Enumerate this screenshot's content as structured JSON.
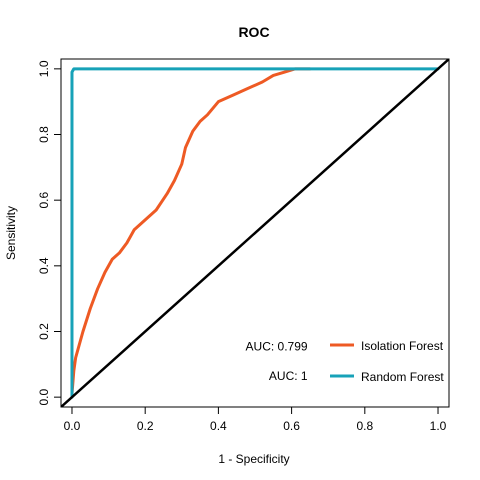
{
  "chart_data": {
    "type": "line",
    "title": "ROC",
    "xlabel": "1 - Specificity",
    "ylabel": "Sensitivity",
    "xlim": [
      -0.03,
      1.03
    ],
    "ylim": [
      -0.03,
      1.03
    ],
    "x_ticks": [
      "0.0",
      "0.2",
      "0.4",
      "0.6",
      "0.8",
      "1.0"
    ],
    "y_ticks": [
      "0.0",
      "0.2",
      "0.4",
      "0.6",
      "0.8",
      "1.0"
    ],
    "grid": false,
    "series": [
      {
        "name": "Isolation Forest",
        "color": "#ee5a24",
        "x": [
          0.0,
          0.005,
          0.01,
          0.02,
          0.03,
          0.05,
          0.07,
          0.09,
          0.11,
          0.13,
          0.15,
          0.17,
          0.2,
          0.23,
          0.26,
          0.28,
          0.3,
          0.31,
          0.33,
          0.35,
          0.37,
          0.4,
          0.44,
          0.48,
          0.52,
          0.55,
          0.58,
          0.61,
          0.63,
          0.65
        ],
        "y": [
          0.01,
          0.08,
          0.12,
          0.16,
          0.2,
          0.27,
          0.33,
          0.38,
          0.42,
          0.44,
          0.47,
          0.51,
          0.54,
          0.57,
          0.62,
          0.66,
          0.71,
          0.76,
          0.81,
          0.84,
          0.86,
          0.9,
          0.92,
          0.94,
          0.96,
          0.98,
          0.99,
          1.0,
          1.0,
          1.0
        ]
      },
      {
        "name": "Random Forest",
        "color": "#17a2b8",
        "x": [
          0.0,
          0.0,
          0.005,
          0.1,
          1.0
        ],
        "y": [
          0.0,
          0.99,
          1.0,
          1.0,
          1.0
        ]
      },
      {
        "name": "",
        "color": "#000000",
        "x": [
          -0.03,
          1.03
        ],
        "y": [
          -0.03,
          1.03
        ]
      }
    ],
    "annotations": [
      {
        "text": "AUC: 0.799",
        "x": 0.6,
        "y": 0.155
      },
      {
        "text": "AUC: 1",
        "x": 0.6,
        "y": 0.065
      }
    ],
    "legend": {
      "position": "bottom-right",
      "entries": [
        "Isolation Forest",
        "Random Forest"
      ]
    }
  }
}
